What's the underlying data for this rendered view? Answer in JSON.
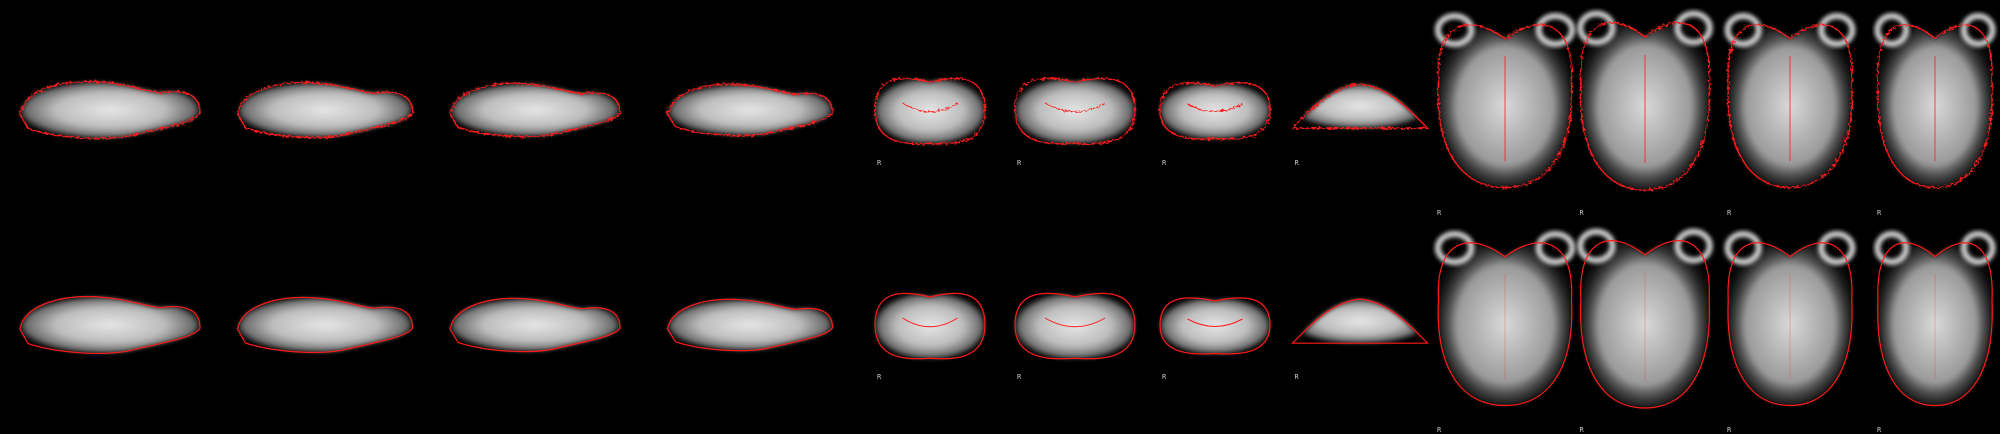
{
  "figure": {
    "description_kind": "brain MRI slice montage with red registration contours",
    "background_color": "#000000",
    "contour_color": "#ff1a1a",
    "tissue_color": "#d8d8d8",
    "rows": [
      {
        "name": "top-row",
        "contour_style": "noisy"
      },
      {
        "name": "bottom-row",
        "contour_style": "smooth"
      }
    ],
    "panels_per_row": [
      {
        "view": "sagittal"
      },
      {
        "view": "sagittal"
      },
      {
        "view": "sagittal"
      },
      {
        "view": "sagittal"
      },
      {
        "view": "coronal",
        "orientation_label": "R"
      },
      {
        "view": "coronal",
        "orientation_label": "R"
      },
      {
        "view": "coronal",
        "orientation_label": "R"
      },
      {
        "view": "coronal",
        "orientation_label": "R"
      },
      {
        "view": "axial",
        "orientation_label": "R"
      },
      {
        "view": "axial",
        "orientation_label": "R"
      },
      {
        "view": "axial",
        "orientation_label": "R"
      },
      {
        "view": "axial",
        "orientation_label": "R"
      }
    ]
  }
}
